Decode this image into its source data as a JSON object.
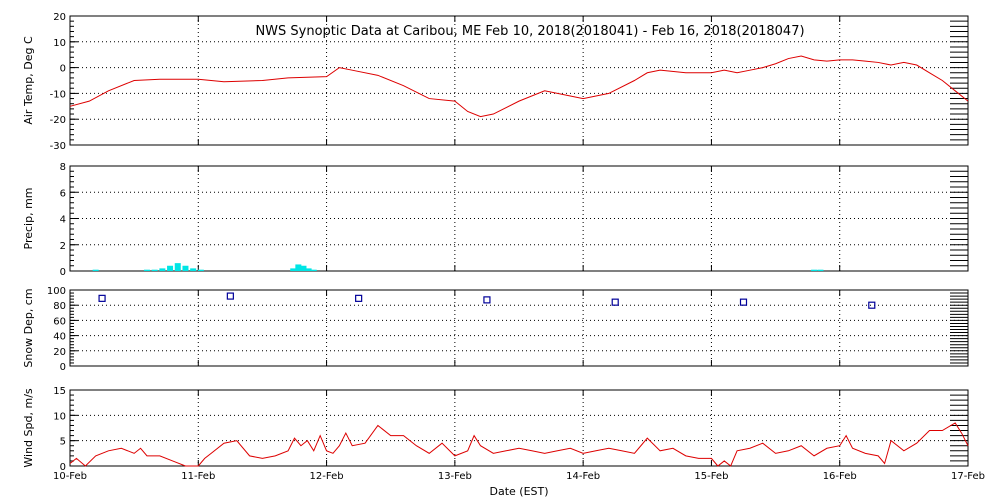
{
  "title": "NWS Synoptic Data at Caribou, ME   Feb 10, 2018(2018041) - Feb 16, 2018(2018047)",
  "xlabel": "Date (EST)",
  "x_ticks": [
    "10-Feb",
    "11-Feb",
    "12-Feb",
    "13-Feb",
    "14-Feb",
    "15-Feb",
    "16-Feb",
    "17-Feb"
  ],
  "colors": {
    "temp": "#dd0000",
    "precip": "#00e5e5",
    "snow": "#000099",
    "wind": "#dd0000",
    "grid": "#000000"
  },
  "chart_data": [
    {
      "type": "line",
      "name": "air-temp",
      "ylabel": "Air Temp, Deg C",
      "ylim": [
        -30,
        20
      ],
      "y_ticks": [
        "20",
        "10",
        "0",
        "-10",
        "-20",
        "-30"
      ],
      "x_unit": "days since 10-Feb 00:00 EST",
      "grid": true,
      "x": [
        0,
        0.15,
        0.3,
        0.5,
        0.7,
        1.0,
        1.2,
        1.5,
        1.7,
        2.0,
        2.1,
        2.2,
        2.4,
        2.6,
        2.8,
        3.0,
        3.1,
        3.2,
        3.3,
        3.5,
        3.7,
        3.9,
        4.0,
        4.2,
        4.4,
        4.5,
        4.6,
        4.8,
        5.0,
        5.1,
        5.2,
        5.3,
        5.4,
        5.5,
        5.6,
        5.7,
        5.8,
        5.9,
        6.0,
        6.1,
        6.2,
        6.3,
        6.4,
        6.5,
        6.6,
        6.7,
        6.8,
        6.9,
        7.0
      ],
      "values": [
        -15,
        -13,
        -9,
        -5,
        -4.5,
        -4.5,
        -5.5,
        -5,
        -4,
        -3.5,
        0,
        -1,
        -3,
        -7,
        -12,
        -13,
        -17,
        -19,
        -18,
        -13,
        -9,
        -11,
        -12,
        -10,
        -5,
        -2,
        -1,
        -2,
        -2,
        -1,
        -2,
        -1,
        0,
        1.5,
        3.5,
        4.5,
        3,
        2.5,
        3,
        3,
        2.5,
        2,
        1,
        2,
        1,
        -2,
        -5,
        -9,
        -13
      ]
    },
    {
      "type": "bar",
      "name": "precipitation",
      "ylabel": "Precip, mm",
      "ylim": [
        0,
        8
      ],
      "y_ticks": [
        "8",
        "6",
        "4",
        "2",
        "0"
      ],
      "x_unit": "days since 10-Feb 00:00 EST",
      "grid": true,
      "x": [
        0.2,
        0.6,
        0.66,
        0.72,
        0.78,
        0.84,
        0.9,
        0.96,
        1.02,
        1.74,
        1.78,
        1.82,
        1.86,
        1.9,
        5.8,
        5.85
      ],
      "values": [
        0.1,
        0.1,
        0.1,
        0.2,
        0.4,
        0.6,
        0.4,
        0.2,
        0.1,
        0.2,
        0.5,
        0.4,
        0.2,
        0.1,
        0.1,
        0.1
      ]
    },
    {
      "type": "scatter",
      "name": "snow-depth",
      "ylabel": "Snow Dep, cm",
      "ylim": [
        0,
        100
      ],
      "y_ticks": [
        "100",
        "80",
        "60",
        "40",
        "20",
        "0"
      ],
      "x_unit": "days since 10-Feb 00:00 EST",
      "grid": true,
      "x": [
        0.25,
        1.25,
        2.25,
        3.25,
        4.25,
        5.25,
        6.25
      ],
      "values": [
        89,
        92,
        89,
        87,
        84,
        84,
        80
      ]
    },
    {
      "type": "line",
      "name": "wind-speed",
      "ylabel": "Wind Spd, m/s",
      "ylim": [
        0,
        15
      ],
      "y_ticks": [
        "15",
        "10",
        "5",
        "0"
      ],
      "x_unit": "days since 10-Feb 00:00 EST",
      "grid": true,
      "x": [
        0,
        0.05,
        0.12,
        0.2,
        0.3,
        0.4,
        0.5,
        0.55,
        0.6,
        0.7,
        0.8,
        0.9,
        1.0,
        1.05,
        1.1,
        1.2,
        1.3,
        1.4,
        1.5,
        1.6,
        1.7,
        1.75,
        1.8,
        1.85,
        1.9,
        1.95,
        2.0,
        2.05,
        2.1,
        2.15,
        2.2,
        2.3,
        2.4,
        2.5,
        2.6,
        2.7,
        2.8,
        2.9,
        3.0,
        3.1,
        3.15,
        3.2,
        3.3,
        3.4,
        3.5,
        3.6,
        3.7,
        3.8,
        3.9,
        4.0,
        4.1,
        4.2,
        4.3,
        4.4,
        4.5,
        4.6,
        4.7,
        4.8,
        4.9,
        5.0,
        5.05,
        5.1,
        5.15,
        5.2,
        5.3,
        5.4,
        5.5,
        5.6,
        5.7,
        5.8,
        5.9,
        6.0,
        6.05,
        6.1,
        6.2,
        6.3,
        6.35,
        6.4,
        6.5,
        6.6,
        6.7,
        6.8,
        6.9,
        6.95,
        7.0
      ],
      "values": [
        0.5,
        1.5,
        0,
        2,
        3,
        3.5,
        2.5,
        3.5,
        2,
        2,
        1,
        0,
        0,
        1.5,
        2.5,
        4.5,
        5,
        2,
        1.5,
        2,
        3,
        5.5,
        4,
        5,
        3,
        6,
        3,
        2.5,
        4,
        6.5,
        4,
        4.5,
        8,
        6,
        6,
        4,
        2.5,
        4.5,
        2,
        3,
        6,
        4,
        2.5,
        3,
        3.5,
        3,
        2.5,
        3,
        3.5,
        2.5,
        3,
        3.5,
        3,
        2.5,
        5.5,
        3,
        3.5,
        2,
        1.5,
        1.5,
        0,
        1,
        0,
        3,
        3.5,
        4.5,
        2.5,
        3,
        4,
        2,
        3.5,
        4,
        6,
        3.5,
        2.5,
        2,
        0.5,
        5,
        3,
        4.5,
        7,
        7,
        8.5,
        6.5,
        4
      ]
    }
  ]
}
